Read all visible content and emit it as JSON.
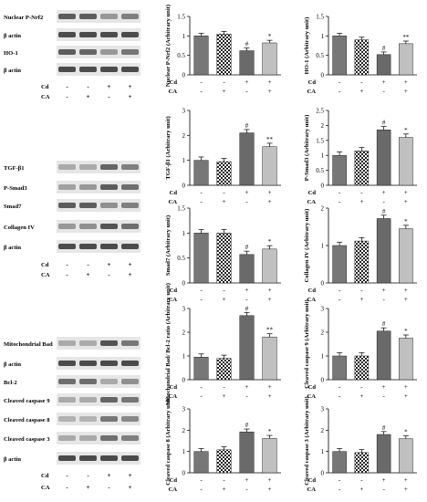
{
  "treatment_labels": {
    "cd": "Cd",
    "ca": "CA"
  },
  "sign_rows": {
    "cd": [
      "-",
      "-",
      "+",
      "+"
    ],
    "ca": [
      "-",
      "+",
      "-",
      "+"
    ]
  },
  "colors": {
    "control": "#777777",
    "cd": "#6a6a6a",
    "cd_ca": "#c0c0c0",
    "band": "#3a3a3a"
  },
  "blot_panels": [
    {
      "rows": [
        "Nuclear P-Nrf2",
        "β actin",
        "HO-1",
        "β actin"
      ]
    },
    {
      "rows": [
        "TGF-β1",
        "P-Smad3",
        "Smad7",
        "Collagen IV",
        "β actin"
      ]
    },
    {
      "rows": [
        "Mitochondrial Bad",
        "β actin",
        "Bcl-2",
        "Cleaved caspase 9",
        "Cleaved caspase 8",
        "Cleaved caspase 3",
        "β actin"
      ]
    }
  ],
  "chart_data": [
    {
      "type": "bar",
      "categories": [
        "-/-",
        "-/+",
        "+/-",
        "+/+"
      ],
      "ylabel": "Nuclear P-Nrf2 (Arbitrary unit)",
      "ylim": [
        0,
        1.5
      ],
      "yticks": [
        "0",
        "0.5",
        "1",
        "1.5"
      ],
      "values": [
        1.0,
        1.05,
        0.62,
        0.82
      ],
      "annotations": [
        "",
        "",
        "#",
        "*"
      ]
    },
    {
      "type": "bar",
      "categories": [
        "-/-",
        "-/+",
        "+/-",
        "+/+"
      ],
      "ylabel": "HO-1 (Arbitrary unit)",
      "ylim": [
        0,
        1.5
      ],
      "yticks": [
        "0",
        "0.5",
        "1",
        "1.5"
      ],
      "values": [
        1.0,
        0.9,
        0.52,
        0.8
      ],
      "annotations": [
        "",
        "",
        "#",
        "**"
      ]
    },
    {
      "type": "bar",
      "categories": [
        "-/-",
        "-/+",
        "+/-",
        "+/+"
      ],
      "ylabel": "TGF-β1 (Arbitrary unit)",
      "ylim": [
        0,
        3
      ],
      "yticks": [
        "0",
        "1",
        "2",
        "3"
      ],
      "values": [
        1.0,
        0.95,
        2.1,
        1.55
      ],
      "annotations": [
        "",
        "",
        "#",
        "**"
      ]
    },
    {
      "type": "bar",
      "categories": [
        "-/-",
        "-/+",
        "+/-",
        "+/+"
      ],
      "ylabel": "P-Smad3 (Arbitrary unit)",
      "ylim": [
        0,
        2.5
      ],
      "yticks": [
        "0",
        "0.5",
        "1",
        "1.5",
        "2",
        "2.5"
      ],
      "values": [
        1.0,
        1.15,
        1.85,
        1.6
      ],
      "annotations": [
        "",
        "",
        "#",
        "*"
      ]
    },
    {
      "type": "bar",
      "categories": [
        "-/-",
        "-/+",
        "+/-",
        "+/+"
      ],
      "ylabel": "Smad7 (Arbitrary unit)",
      "ylim": [
        0,
        1.5
      ],
      "yticks": [
        "0",
        "0.5",
        "1",
        "1.5"
      ],
      "values": [
        1.0,
        1.0,
        0.57,
        0.68
      ],
      "annotations": [
        "",
        "",
        "#",
        "*"
      ]
    },
    {
      "type": "bar",
      "categories": [
        "-/-",
        "-/+",
        "+/-",
        "+/+"
      ],
      "ylabel": "Collagen IV (Arbitrary unit)",
      "ylim": [
        0,
        2
      ],
      "yticks": [
        "0",
        "1",
        "2"
      ],
      "values": [
        1.0,
        1.12,
        1.72,
        1.45
      ],
      "annotations": [
        "",
        "",
        "#",
        "*"
      ]
    },
    {
      "type": "bar",
      "categories": [
        "-/-",
        "-/+",
        "+/-",
        "+/+"
      ],
      "ylabel": "Mitochondrial Bad/ Bcl-2 ratio (Arbitrary unit)",
      "ylim": [
        0,
        3
      ],
      "yticks": [
        "0",
        "1",
        "2",
        "3"
      ],
      "values": [
        0.95,
        0.9,
        2.7,
        1.8
      ],
      "annotations": [
        "",
        "",
        "#",
        "**"
      ]
    },
    {
      "type": "bar",
      "categories": [
        "-/-",
        "-/+",
        "+/-",
        "+/+"
      ],
      "ylabel": "Cleaved caspase 9 (Arbitrary unit)",
      "ylim": [
        0,
        3
      ],
      "yticks": [
        "0",
        "1",
        "2",
        "3"
      ],
      "values": [
        1.0,
        1.0,
        2.05,
        1.75
      ],
      "annotations": [
        "",
        "",
        "#",
        "*"
      ]
    },
    {
      "type": "bar",
      "categories": [
        "-/-",
        "-/+",
        "+/-",
        "+/+"
      ],
      "ylabel": "Cleaved caspase 8 (Arbitrary unit)",
      "ylim": [
        0,
        3
      ],
      "yticks": [
        "0",
        "1",
        "2",
        "3"
      ],
      "values": [
        1.0,
        1.08,
        1.92,
        1.62
      ],
      "annotations": [
        "",
        "",
        "#",
        "*"
      ]
    },
    {
      "type": "bar",
      "categories": [
        "-/-",
        "-/+",
        "+/-",
        "+/+"
      ],
      "ylabel": "Cleaved caspase 3 (Arbitrary unit)",
      "ylim": [
        0,
        3
      ],
      "yticks": [
        "0",
        "1",
        "2",
        "3"
      ],
      "values": [
        1.0,
        0.95,
        1.8,
        1.6
      ],
      "annotations": [
        "",
        "",
        "#",
        "*"
      ]
    }
  ]
}
